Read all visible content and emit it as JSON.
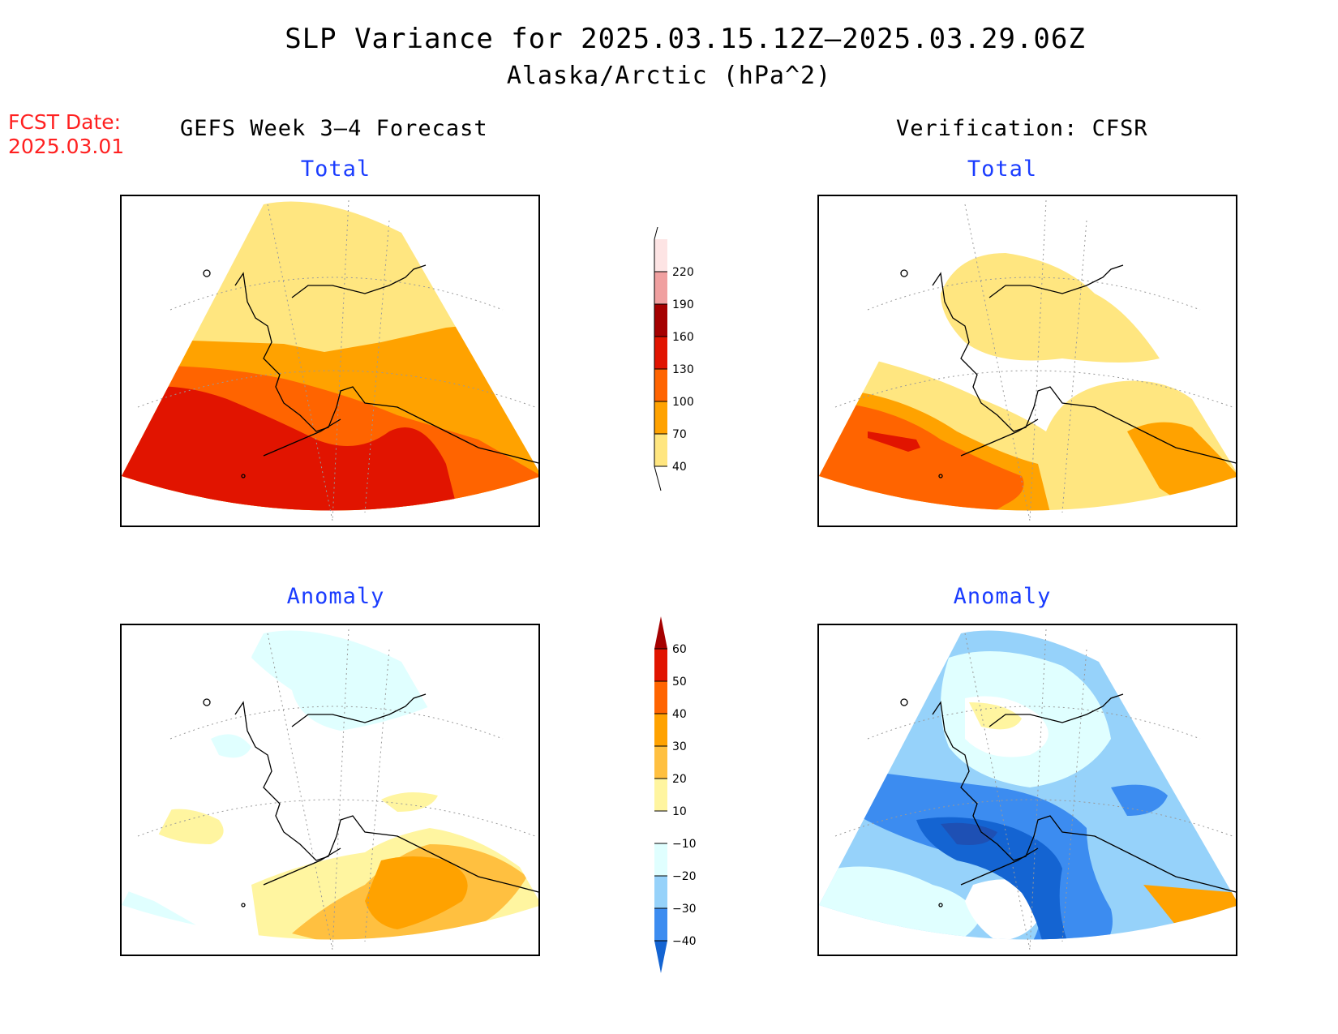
{
  "title": {
    "line1": "SLP Variance for 2025.03.15.12Z–2025.03.29.06Z",
    "line2": "Alaska/Arctic (hPa^2)"
  },
  "fcst_date": {
    "label": "FCST Date:",
    "value": "2025.03.01"
  },
  "left_header": "GEFS Week 3–4 Forecast",
  "right_header": "Verification: CFSR",
  "panels": {
    "top_left_title": "Total",
    "top_right_title": "Total",
    "bottom_left_title": "Anomaly",
    "bottom_right_title": "Anomaly"
  },
  "colorbars": {
    "total": {
      "levels": [
        "40",
        "70",
        "100",
        "130",
        "160",
        "190",
        "220"
      ],
      "colors": [
        "#ffe680",
        "#ffa200",
        "#ff6400",
        "#e11400",
        "#a50000",
        "#f0a0a0",
        "#fde4e4"
      ]
    },
    "anomaly": {
      "levels": [
        "60",
        "50",
        "40",
        "30",
        "20",
        "10",
        "−10",
        "−20",
        "−30",
        "−40"
      ],
      "colors": [
        "#a50000",
        "#e11400",
        "#ff6400",
        "#ffa200",
        "#ffc040",
        "#fff5a0",
        "#ffffff",
        "#e0ffff",
        "#96d2fa",
        "#3c8cf0",
        "#1464d2"
      ]
    }
  },
  "colors": {
    "fcst_date": "#ff2020",
    "panel_title": "#1a3cff"
  }
}
